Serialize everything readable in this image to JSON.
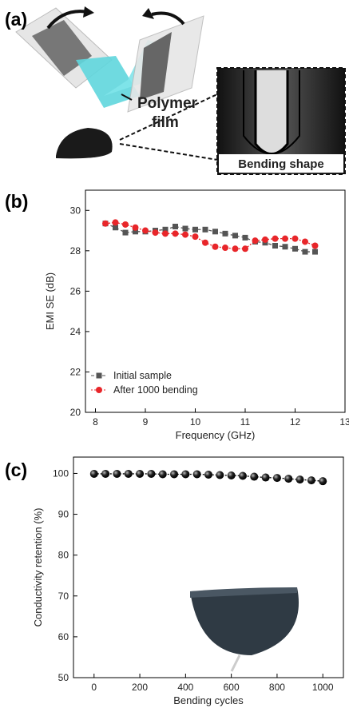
{
  "panel_a": {
    "label": "(a)",
    "film_label_lines": [
      "Polymer",
      "film"
    ],
    "inset_label": "Bending shape"
  },
  "chart_data": [
    {
      "type": "line",
      "panel_label": "(b)",
      "x_label": "Frequency (GHz)",
      "y_label": "EMI SE (dB)",
      "x": [
        8.2,
        8.4,
        8.6,
        8.8,
        9.0,
        9.2,
        9.4,
        9.6,
        9.8,
        10.0,
        10.2,
        10.4,
        10.6,
        10.8,
        11.0,
        11.2,
        11.4,
        11.6,
        11.8,
        12.0,
        12.2,
        12.4
      ],
      "series": [
        {
          "name": "Initial sample",
          "color": "#555555",
          "marker": "square",
          "line_style": "dashed",
          "values": [
            29.35,
            29.15,
            28.9,
            28.95,
            28.95,
            29.0,
            29.05,
            29.2,
            29.1,
            29.05,
            29.05,
            28.95,
            28.85,
            28.75,
            28.65,
            28.45,
            28.4,
            28.25,
            28.2,
            28.1,
            27.95,
            27.95
          ]
        },
        {
          "name": "After 1000 bending",
          "color": "#e8262a",
          "marker": "circle",
          "line_style": "dotted",
          "values": [
            29.35,
            29.4,
            29.3,
            29.15,
            29.0,
            28.9,
            28.85,
            28.85,
            28.8,
            28.7,
            28.4,
            28.2,
            28.15,
            28.1,
            28.1,
            28.5,
            28.55,
            28.6,
            28.6,
            28.6,
            28.45,
            28.25
          ]
        }
      ],
      "xlim": [
        7.8,
        13
      ],
      "xticks": [
        8,
        9,
        10,
        11,
        12,
        13
      ],
      "ylim": [
        20,
        31
      ],
      "yticks": [
        20,
        22,
        24,
        26,
        28,
        30
      ],
      "legend": "lower left"
    },
    {
      "type": "line",
      "panel_label": "(c)",
      "x_label": "Bending cycles",
      "y_label": "Conductivity retention (%)",
      "x": [
        0,
        50,
        100,
        150,
        200,
        250,
        300,
        350,
        400,
        450,
        500,
        550,
        600,
        650,
        700,
        750,
        800,
        850,
        900,
        950,
        1000
      ],
      "series": [
        {
          "color": "#000000",
          "marker": "sphere",
          "line_style": "dotted",
          "values": [
            99.9,
            99.9,
            99.9,
            99.9,
            99.9,
            99.9,
            99.8,
            99.8,
            99.8,
            99.8,
            99.7,
            99.6,
            99.5,
            99.4,
            99.2,
            99.0,
            98.9,
            98.7,
            98.5,
            98.3,
            98.1
          ]
        }
      ],
      "xlim": [
        -90,
        1090
      ],
      "xticks": [
        0,
        200,
        400,
        600,
        800,
        1000
      ],
      "ylim": [
        50,
        104
      ],
      "yticks": [
        50,
        60,
        70,
        80,
        90,
        100
      ]
    }
  ]
}
